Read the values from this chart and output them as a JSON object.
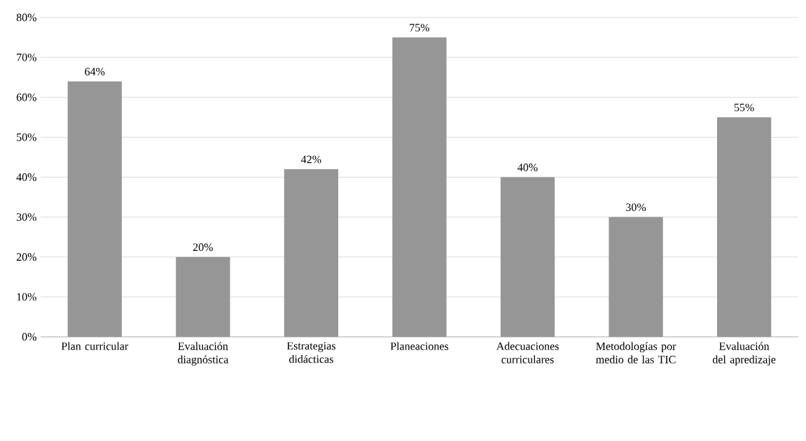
{
  "chart_data": {
    "type": "bar",
    "categories": [
      "Plan curricular",
      "Evaluación diagnóstica",
      "Estrategias didácticas",
      "Planeaciones",
      "Adecuaciones curriculares",
      "Metodologías por medio de las TIC",
      "Evaluación del apredizaje"
    ],
    "values": [
      64,
      20,
      42,
      75,
      40,
      30,
      55
    ],
    "value_labels": [
      "64%",
      "20%",
      "42%",
      "75%",
      "40%",
      "30%",
      "55%"
    ],
    "color": "#969696",
    "ylim": [
      0,
      80
    ],
    "yticks": [
      {
        "value": 0,
        "label": "0%"
      },
      {
        "value": 10,
        "label": "10%"
      },
      {
        "value": 20,
        "label": "20%"
      },
      {
        "value": 30,
        "label": "30%"
      },
      {
        "value": 40,
        "label": "40%"
      },
      {
        "value": 50,
        "label": "50%"
      },
      {
        "value": 60,
        "label": "60%"
      },
      {
        "value": 70,
        "label": "70%"
      },
      {
        "value": 80,
        "label": "80%"
      }
    ],
    "grid": "y"
  }
}
